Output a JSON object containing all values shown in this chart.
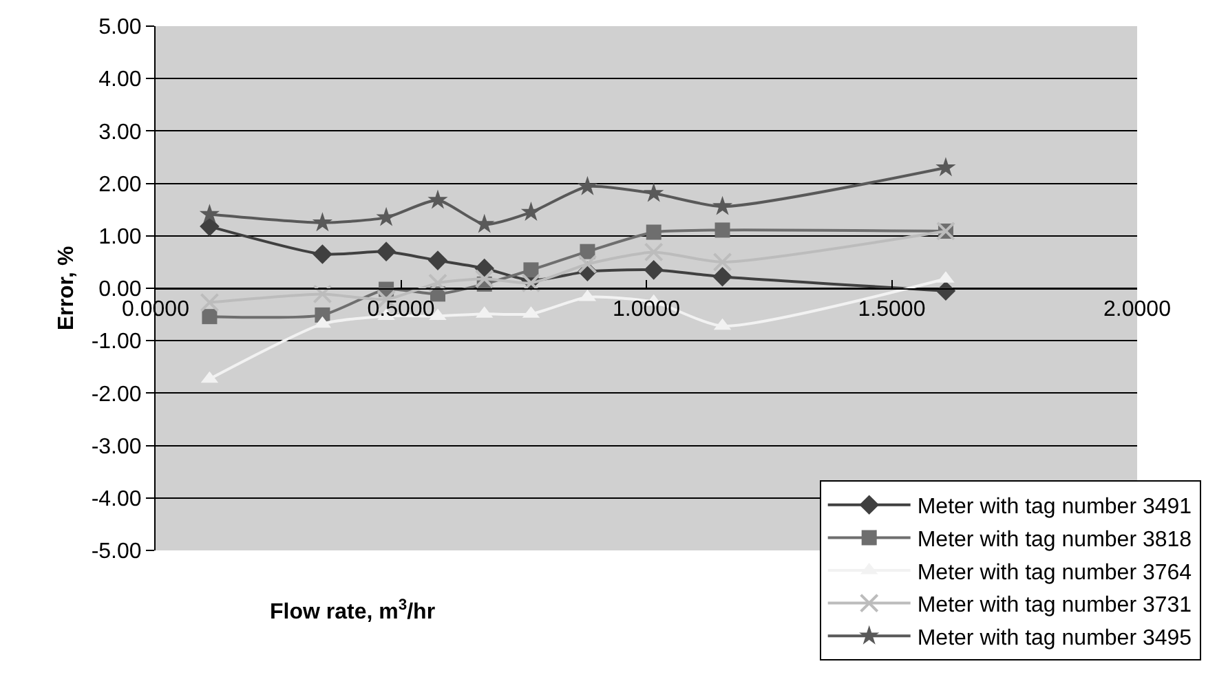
{
  "chart_data": {
    "type": "line",
    "xlabel": "Flow rate, m$^{3}$/hr",
    "ylabel": "Error, %",
    "x": [
      0.11,
      0.34,
      0.47,
      0.575,
      0.67,
      0.765,
      0.88,
      1.015,
      1.155,
      1.61
    ],
    "series": [
      {
        "name": "Meter with tag number 3491",
        "color": "#404040",
        "marker": "diamond",
        "values": [
          1.18,
          0.65,
          0.7,
          0.53,
          0.38,
          0.15,
          0.32,
          0.35,
          0.22,
          -0.05
        ]
      },
      {
        "name": "Meter with tag number 3818",
        "color": "#6e6e6e",
        "marker": "square",
        "values": [
          -0.54,
          -0.51,
          -0.02,
          -0.11,
          0.08,
          0.35,
          0.7,
          1.07,
          1.11,
          1.09
        ]
      },
      {
        "name": "Meter with tag number 3764",
        "color": "#f2f2f2",
        "marker": "triangle",
        "values": [
          -1.73,
          -0.68,
          -0.53,
          -0.53,
          -0.49,
          -0.49,
          -0.17,
          -0.26,
          -0.72,
          0.18
        ]
      },
      {
        "name": "Meter with tag number 3731",
        "color": "#bcbcbc",
        "marker": "cross",
        "values": [
          -0.27,
          -0.11,
          -0.21,
          0.1,
          0.18,
          0.1,
          0.46,
          0.69,
          0.5,
          1.09
        ]
      },
      {
        "name": "Meter with tag number 3495",
        "color": "#595959",
        "marker": "star",
        "values": [
          1.41,
          1.25,
          1.35,
          1.68,
          1.22,
          1.45,
          1.94,
          1.81,
          1.56,
          2.3
        ]
      }
    ],
    "xlim": [
      0,
      2
    ],
    "xticks": [
      {
        "value": 0,
        "label": "0.0000"
      },
      {
        "value": 0.5,
        "label": "0.5000"
      },
      {
        "value": 1,
        "label": "1.0000"
      },
      {
        "value": 1.5,
        "label": "1.5000"
      },
      {
        "value": 2,
        "label": "2.0000"
      }
    ],
    "ylim": [
      -5,
      5
    ],
    "yticks": [
      {
        "value": -5,
        "label": "-5.00"
      },
      {
        "value": -4,
        "label": "-4.00"
      },
      {
        "value": -3,
        "label": "-3.00"
      },
      {
        "value": -2,
        "label": "-2.00"
      },
      {
        "value": -1,
        "label": "-1.00"
      },
      {
        "value": 0,
        "label": "0.00"
      },
      {
        "value": 1,
        "label": "1.00"
      },
      {
        "value": 2,
        "label": "2.00"
      },
      {
        "value": 3,
        "label": "3.00"
      },
      {
        "value": 4,
        "label": "4.00"
      },
      {
        "value": 5,
        "label": "5.00"
      }
    ],
    "grid": "y",
    "legend": "bottom right"
  }
}
